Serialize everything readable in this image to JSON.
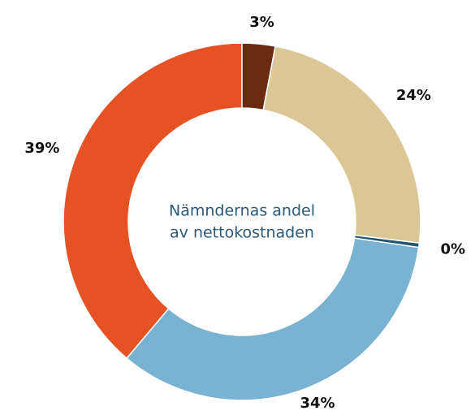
{
  "chart_data": {
    "type": "donut",
    "title": [
      "Nämndernas andel",
      "av nettokostnaden"
    ],
    "categories": [
      null,
      null,
      null,
      null,
      null
    ],
    "values": [
      3,
      24,
      0.4,
      34,
      39
    ],
    "value_labels": [
      "3%",
      "24%",
      "0%",
      "34%",
      "39%"
    ],
    "colors": [
      "#6b2a12",
      "#dbc796",
      "#1f5673",
      "#7ab3d1",
      "#e65224"
    ]
  }
}
